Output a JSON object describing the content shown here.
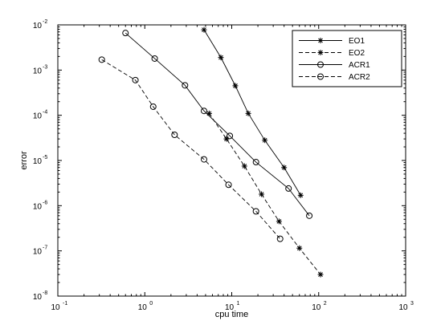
{
  "chart_data": {
    "type": "line",
    "title": "",
    "xlabel": "cpu time",
    "ylabel": "error",
    "xscale": "log",
    "yscale": "log",
    "xlim": [
      0.1,
      1000
    ],
    "ylim": [
      1e-08,
      0.01
    ],
    "grid": false,
    "legend_position": "top-right",
    "x_ticks": [
      {
        "value": 0.1,
        "base": "10",
        "exp": "-1"
      },
      {
        "value": 1,
        "base": "10",
        "exp": "0"
      },
      {
        "value": 10,
        "base": "10",
        "exp": "1"
      },
      {
        "value": 100,
        "base": "10",
        "exp": "2"
      },
      {
        "value": 1000,
        "base": "10",
        "exp": "3"
      }
    ],
    "y_ticks": [
      {
        "value": 1e-08,
        "base": "10",
        "exp": "-8"
      },
      {
        "value": 1e-07,
        "base": "10",
        "exp": "-7"
      },
      {
        "value": 1e-06,
        "base": "10",
        "exp": "-6"
      },
      {
        "value": 1e-05,
        "base": "10",
        "exp": "-5"
      },
      {
        "value": 0.0001,
        "base": "10",
        "exp": "-4"
      },
      {
        "value": 0.001,
        "base": "10",
        "exp": "-3"
      },
      {
        "value": 0.01,
        "base": "10",
        "exp": "-2"
      }
    ],
    "series": [
      {
        "name": "EO1",
        "line": "solid",
        "marker": "star",
        "color": "#000000",
        "x": [
          4.8,
          7.5,
          11,
          15.5,
          24,
          40,
          62
        ],
        "y": [
          0.0078,
          0.0019,
          0.00045,
          0.00011,
          2.8e-05,
          7e-06,
          1.7e-06
        ]
      },
      {
        "name": "EO2",
        "line": "dashed",
        "marker": "star",
        "color": "#000000",
        "x": [
          5.5,
          8.7,
          14,
          22,
          35,
          60,
          105
        ],
        "y": [
          0.00011,
          3e-05,
          7.5e-06,
          1.8e-06,
          4.5e-07,
          1.15e-07,
          3e-08
        ]
      },
      {
        "name": "ACR1",
        "line": "solid",
        "marker": "circle",
        "color": "#000000",
        "x": [
          0.6,
          1.3,
          2.9,
          4.8,
          9.5,
          19,
          45,
          78
        ],
        "y": [
          0.0066,
          0.0018,
          0.00046,
          0.000125,
          3.5e-05,
          9.2e-06,
          2.4e-06,
          6e-07
        ]
      },
      {
        "name": "ACR2",
        "line": "dashed",
        "marker": "circle",
        "color": "#000000",
        "x": [
          0.32,
          0.78,
          1.25,
          2.2,
          4.8,
          9.2,
          19,
          36
        ],
        "y": [
          0.0017,
          0.0006,
          0.000155,
          3.7e-05,
          1.06e-05,
          2.9e-06,
          7.5e-07,
          1.85e-07
        ]
      }
    ]
  }
}
